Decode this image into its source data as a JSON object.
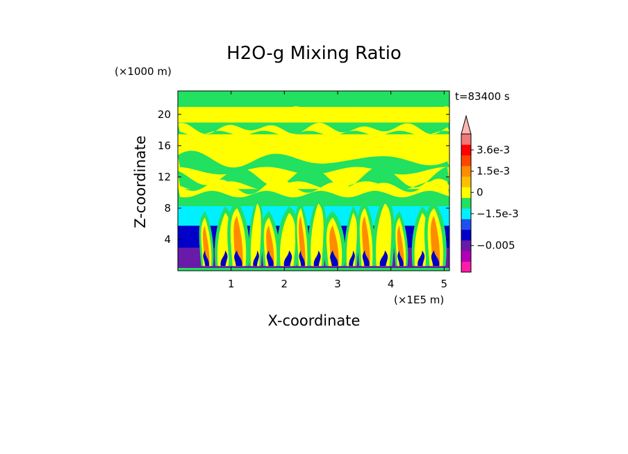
{
  "chart_data": {
    "type": "heatmap",
    "title": "H2O-g Mixing Ratio",
    "xlabel": "X-coordinate",
    "ylabel": "Z-coordinate",
    "x_unit": "(×1E5 m)",
    "y_unit": "(×1000 m)",
    "time_label": "t=83400 s",
    "xlim": [
      0,
      5.1
    ],
    "ylim": [
      0,
      23
    ],
    "x_ticks": [
      "1",
      "2",
      "3",
      "4",
      "5"
    ],
    "x_tick_values": [
      1,
      2,
      3,
      4,
      5
    ],
    "y_ticks": [
      "4",
      "8",
      "12",
      "16",
      "20"
    ],
    "y_tick_values": [
      4,
      8,
      12,
      16,
      20
    ],
    "colorbar": {
      "levels": [
        {
          "color": "#ff1aa8"
        },
        {
          "color": "#b400b4"
        },
        {
          "color": "#6a1aa8"
        },
        {
          "color": "#0000c8"
        },
        {
          "color": "#1e50f0"
        },
        {
          "color": "#00f0ff"
        },
        {
          "color": "#22e060"
        },
        {
          "color": "#ffff00"
        },
        {
          "color": "#ffbe00"
        },
        {
          "color": "#ff8c00"
        },
        {
          "color": "#ff4600"
        },
        {
          "color": "#ff0000"
        },
        {
          "color": "#f07878"
        }
      ],
      "extend_color": "#ffb4b4",
      "labels": [
        "3.6e-3",
        "1.5e-3",
        "0",
        "−1.5e-3",
        "−0.005"
      ]
    },
    "bands": [
      {
        "z0": 0.0,
        "z1": 0.4,
        "color": "#22e060"
      },
      {
        "z0": 0.4,
        "z1": 3.0,
        "color": "#6a1aa8"
      },
      {
        "z0": 3.0,
        "z1": 5.8,
        "color": "#0000c8"
      },
      {
        "z0": 5.8,
        "z1": 8.3,
        "color": "#00f0ff"
      },
      {
        "z0": 8.3,
        "z1": 10.5,
        "color": "#22e060"
      },
      {
        "z0": 10.5,
        "z1": 17.5,
        "color": "#ffff00"
      },
      {
        "z0": 17.5,
        "z1": 19.0,
        "color": "#22e060"
      },
      {
        "z0": 19.0,
        "z1": 21.0,
        "color": "#ffff00"
      },
      {
        "z0": 21.0,
        "z1": 23.0,
        "color": "#22e060"
      }
    ],
    "plumes_x": [
      0.55,
      0.85,
      1.15,
      1.45,
      1.75,
      2.05,
      2.35,
      2.6,
      2.95,
      3.25,
      3.55,
      3.85,
      4.2,
      4.55,
      4.85
    ]
  }
}
